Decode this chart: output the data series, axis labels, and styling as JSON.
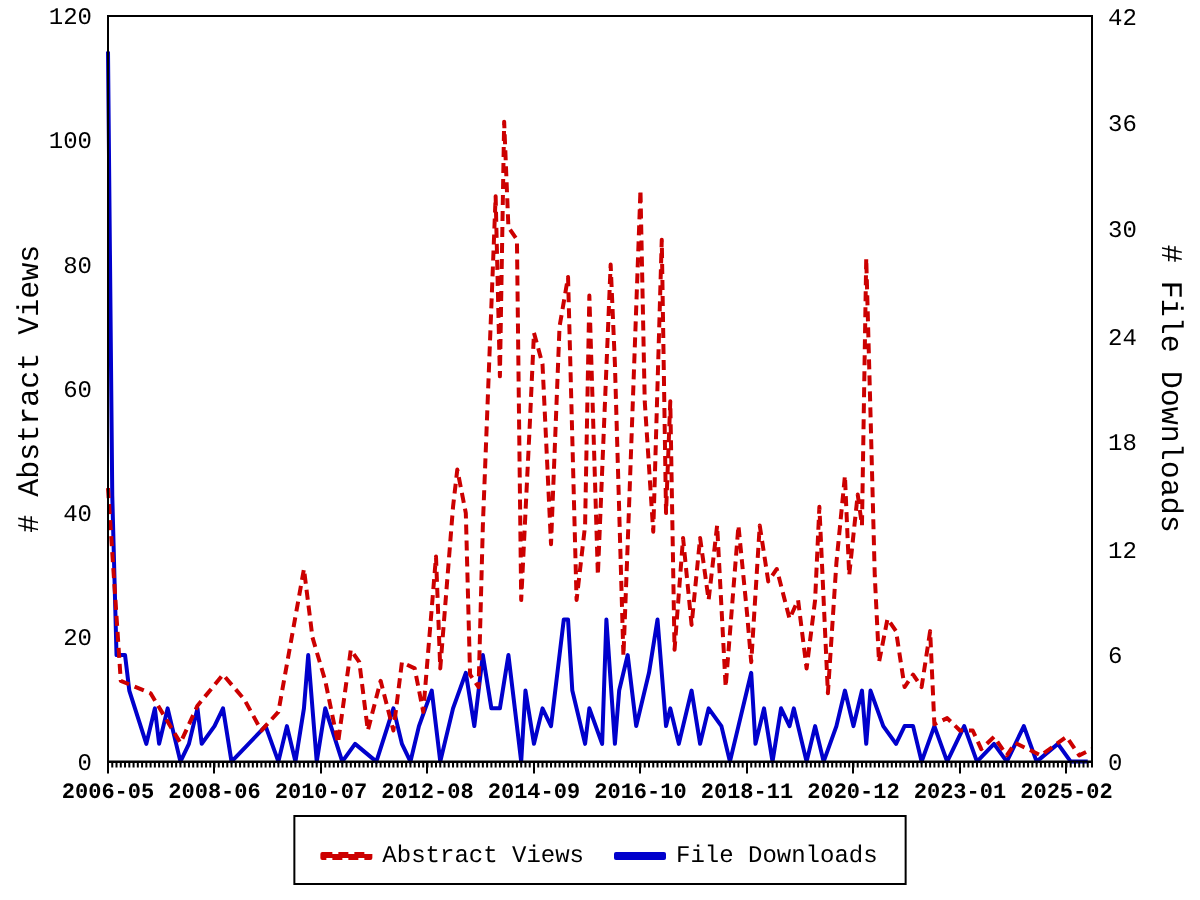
{
  "chart_data": {
    "type": "line",
    "ylabel": "# Abstract Views",
    "y2label": "# File Downloads",
    "xlim": [
      "2006-05",
      "2025-08"
    ],
    "xticks": [
      "2006-05",
      "2008-06",
      "2010-07",
      "2012-08",
      "2014-09",
      "2016-10",
      "2018-11",
      "2020-12",
      "2023-01",
      "2025-02"
    ],
    "ylim": [
      0,
      120
    ],
    "yticks": [
      0,
      20,
      40,
      60,
      80,
      100,
      120
    ],
    "y2lim": [
      0,
      42
    ],
    "y2ticks": [
      0,
      6,
      12,
      18,
      24,
      30,
      36,
      42
    ],
    "grid": false,
    "legend": "bottom",
    "marker": "none",
    "series": [
      {
        "name": "Abstract Views",
        "color": "#cc0000",
        "line_style": "dashed",
        "x": [
          "2006-05",
          "2006-08",
          "2007-03",
          "2007-10",
          "2008-02",
          "2008-08",
          "2009-01",
          "2009-05",
          "2009-09",
          "2010-03",
          "2010-05",
          "2010-08",
          "2010-11",
          "2011-02",
          "2011-04",
          "2011-06",
          "2011-09",
          "2011-12",
          "2012-02",
          "2012-05",
          "2012-07",
          "2012-10",
          "2012-11",
          "2013-02",
          "2013-03",
          "2013-05",
          "2013-06",
          "2013-08",
          "2013-09",
          "2013-12",
          "2014-01",
          "2014-02",
          "2014-03",
          "2014-05",
          "2014-06",
          "2014-08",
          "2014-09",
          "2014-11",
          "2015-01",
          "2015-03",
          "2015-05",
          "2015-07",
          "2015-09",
          "2015-10",
          "2015-12",
          "2016-03",
          "2016-04",
          "2016-06",
          "2016-07",
          "2016-10",
          "2016-11",
          "2017-01",
          "2017-03",
          "2017-04",
          "2017-05",
          "2017-06",
          "2017-08",
          "2017-10",
          "2017-12",
          "2018-02",
          "2018-04",
          "2018-06",
          "2018-09",
          "2018-11",
          "2018-12",
          "2019-02",
          "2019-04",
          "2019-06",
          "2019-09",
          "2019-11",
          "2020-01",
          "2020-03",
          "2020-04",
          "2020-06",
          "2020-08",
          "2020-10",
          "2020-11",
          "2021-01",
          "2021-02",
          "2021-03",
          "2021-04",
          "2021-05",
          "2021-06",
          "2021-08",
          "2021-10",
          "2021-12",
          "2022-02",
          "2022-04",
          "2022-06",
          "2022-07",
          "2022-10",
          "2023-01",
          "2023-04",
          "2023-06",
          "2023-09",
          "2023-12",
          "2024-02",
          "2024-05",
          "2024-08",
          "2025-02",
          "2025-05",
          "2025-08"
        ],
        "values": [
          44,
          13,
          11,
          3,
          9,
          14,
          10,
          5,
          8,
          31,
          20,
          13,
          3,
          18,
          16,
          5,
          13,
          5,
          16,
          15,
          8,
          33,
          15,
          41,
          47,
          40,
          14,
          12,
          38,
          91,
          62,
          103,
          86,
          84,
          26,
          54,
          69,
          64,
          35,
          70,
          78,
          26,
          38,
          75,
          30,
          80,
          64,
          17,
          35,
          92,
          58,
          37,
          84,
          40,
          58,
          18,
          36,
          22,
          36,
          26,
          38,
          12,
          38,
          24,
          16,
          38,
          29,
          31,
          23,
          26,
          15,
          26,
          41,
          11,
          32,
          46,
          30,
          43,
          38,
          81,
          56,
          30,
          16,
          23,
          21,
          12,
          14,
          12,
          21,
          6,
          7,
          5,
          5,
          2,
          4,
          1,
          3,
          2,
          1,
          4,
          1,
          2
        ]
      },
      {
        "name": "File Downloads",
        "color": "#0000cc",
        "line_style": "solid",
        "axis": "y2",
        "x": [
          "2006-05",
          "2006-06",
          "2006-07",
          "2006-09",
          "2006-10",
          "2007-02",
          "2007-04",
          "2007-05",
          "2007-07",
          "2007-10",
          "2007-12",
          "2008-02",
          "2008-03",
          "2008-06",
          "2008-08",
          "2008-10",
          "2009-02",
          "2009-06",
          "2009-09",
          "2009-11",
          "2010-01",
          "2010-03",
          "2010-04",
          "2010-06",
          "2010-08",
          "2010-12",
          "2011-03",
          "2011-08",
          "2011-12",
          "2012-02",
          "2012-04",
          "2012-06",
          "2012-09",
          "2012-11",
          "2013-02",
          "2013-05",
          "2013-07",
          "2013-09",
          "2013-11",
          "2014-01",
          "2014-03",
          "2014-04",
          "2014-06",
          "2014-07",
          "2014-09",
          "2014-11",
          "2015-01",
          "2015-04",
          "2015-05",
          "2015-06",
          "2015-09",
          "2015-10",
          "2016-01",
          "2016-02",
          "2016-04",
          "2016-05",
          "2016-07",
          "2016-09",
          "2016-12",
          "2017-02",
          "2017-04",
          "2017-05",
          "2017-07",
          "2017-10",
          "2017-12",
          "2018-02",
          "2018-05",
          "2018-07",
          "2018-09",
          "2018-11",
          "2018-12",
          "2019-01",
          "2019-03",
          "2019-05",
          "2019-07",
          "2019-09",
          "2019-10",
          "2020-01",
          "2020-03",
          "2020-05",
          "2020-08",
          "2020-10",
          "2020-12",
          "2021-02",
          "2021-03",
          "2021-04",
          "2021-07",
          "2021-10",
          "2021-12",
          "2022-02",
          "2022-04",
          "2022-07",
          "2022-10",
          "2023-02",
          "2023-05",
          "2023-09",
          "2023-12",
          "2024-04",
          "2024-07",
          "2024-12",
          "2025-03",
          "2025-07"
        ],
        "values": [
          40,
          15,
          6,
          6,
          4,
          1,
          3,
          1,
          3,
          0,
          1,
          3,
          1,
          2,
          3,
          0,
          1,
          2,
          0,
          2,
          0,
          3,
          6,
          0,
          3,
          0,
          1,
          0,
          3,
          1,
          0,
          2,
          4,
          0,
          3,
          5,
          2,
          6,
          3,
          3,
          6,
          4,
          0,
          4,
          1,
          3,
          2,
          8,
          8,
          4,
          1,
          3,
          1,
          8,
          1,
          4,
          6,
          2,
          5,
          8,
          2,
          3,
          1,
          4,
          1,
          3,
          2,
          0,
          2,
          4,
          5,
          1,
          3,
          0,
          3,
          2,
          3,
          0,
          2,
          0,
          2,
          4,
          2,
          4,
          1,
          4,
          2,
          1,
          2,
          2,
          0,
          2,
          0,
          2,
          0,
          1,
          0,
          2,
          0,
          1,
          0,
          0
        ]
      }
    ]
  }
}
